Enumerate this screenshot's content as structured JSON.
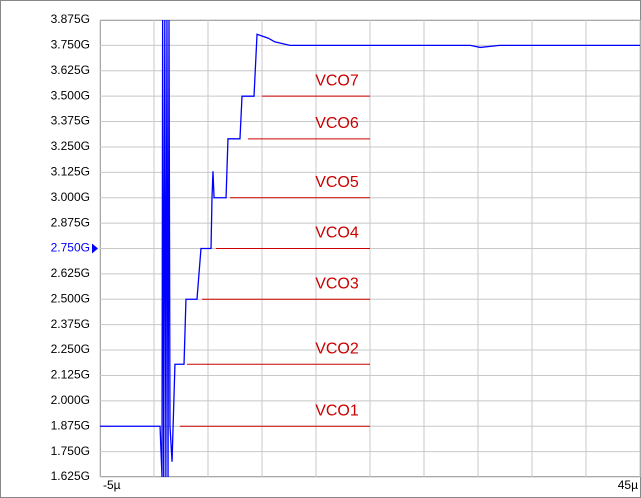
{
  "chart_data": {
    "type": "line",
    "xlim": [
      -5,
      45
    ],
    "xticks": [
      {
        "value": -5,
        "label": "-5µ"
      },
      {
        "value": 0,
        "label": null
      },
      {
        "value": 5,
        "label": null
      },
      {
        "value": 10,
        "label": null
      },
      {
        "value": 15,
        "label": null
      },
      {
        "value": 20,
        "label": null
      },
      {
        "value": 25,
        "label": null
      },
      {
        "value": 30,
        "label": null
      },
      {
        "value": 35,
        "label": null
      },
      {
        "value": 40,
        "label": null
      },
      {
        "value": 45,
        "label": "45µ"
      }
    ],
    "ylim": [
      1.625,
      3.875
    ],
    "yticks": [
      {
        "value": 3.875,
        "label": "3.875G"
      },
      {
        "value": 3.75,
        "label": "3.750G"
      },
      {
        "value": 3.625,
        "label": "3.625G"
      },
      {
        "value": 3.5,
        "label": "3.500G"
      },
      {
        "value": 3.375,
        "label": "3.375G"
      },
      {
        "value": 3.25,
        "label": "3.250G"
      },
      {
        "value": 3.125,
        "label": "3.125G"
      },
      {
        "value": 3.0,
        "label": "3.000G"
      },
      {
        "value": 2.875,
        "label": "2.875G"
      },
      {
        "value": 2.75,
        "label": "2.750G",
        "marker": true
      },
      {
        "value": 2.625,
        "label": "2.625G"
      },
      {
        "value": 2.5,
        "label": "2.500G"
      },
      {
        "value": 2.375,
        "label": "2.375G"
      },
      {
        "value": 2.25,
        "label": "2.250G"
      },
      {
        "value": 2.125,
        "label": "2.125G"
      },
      {
        "value": 2.0,
        "label": "2.000G"
      },
      {
        "value": 1.875,
        "label": "1.875G"
      },
      {
        "value": 1.75,
        "label": "1.750G"
      },
      {
        "value": 1.625,
        "label": "1.625G"
      }
    ],
    "grid": true,
    "marker_color": "#0000ff",
    "series": [
      {
        "color": "#0000ff",
        "x": [
          -5,
          0.56,
          0.74,
          0.8,
          0.9,
          1.0,
          1.1,
          1.2,
          1.3,
          1.39,
          1.48,
          1.67,
          1.94,
          2.78,
          2.96,
          3.98,
          4.35,
          5.28,
          5.37,
          5.46,
          5.56,
          6.67,
          6.85,
          7.96,
          8.15,
          9.26,
          9.54,
          10.56,
          11.2,
          12.6,
          29.3,
          30.2,
          32.0,
          45
        ],
        "values": [
          1.875,
          1.875,
          1.625,
          3.875,
          1.625,
          3.875,
          1.625,
          3.875,
          1.625,
          3.875,
          1.875,
          1.7,
          2.18,
          2.18,
          2.5,
          2.5,
          2.75,
          2.75,
          3.0,
          3.13,
          3.0,
          3.0,
          3.29,
          3.29,
          3.5,
          3.5,
          3.805,
          3.786,
          3.767,
          3.75,
          3.75,
          3.74,
          3.75,
          3.75
        ]
      }
    ],
    "levels": {
      "color": "#cc0000",
      "items": [
        {
          "label": "VCO1",
          "value": 1.875,
          "x": [
            2.4,
            20
          ]
        },
        {
          "label": "VCO2",
          "value": 2.18,
          "x": [
            3.06,
            20
          ]
        },
        {
          "label": "VCO3",
          "value": 2.5,
          "x": [
            4.44,
            20
          ]
        },
        {
          "label": "VCO4",
          "value": 2.75,
          "x": [
            5.74,
            20
          ]
        },
        {
          "label": "VCO5",
          "value": 3.0,
          "x": [
            7.04,
            20
          ]
        },
        {
          "label": "VCO6",
          "value": 3.29,
          "x": [
            8.7,
            20
          ]
        },
        {
          "label": "VCO7",
          "value": 3.5,
          "x": [
            10.0,
            20
          ]
        }
      ]
    }
  }
}
